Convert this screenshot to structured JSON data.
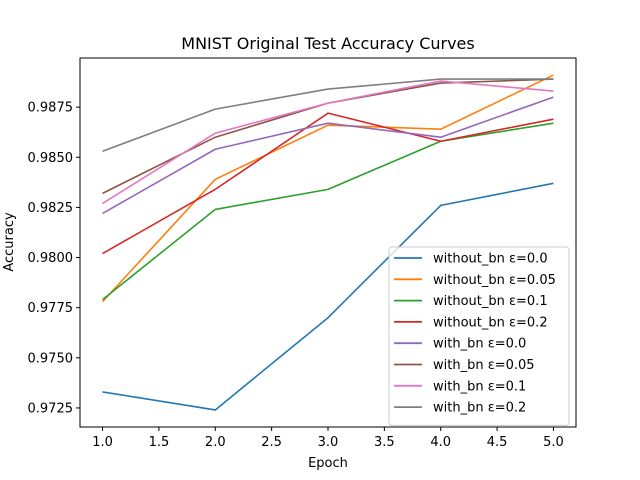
{
  "chart_data": {
    "type": "line",
    "title": "MNIST Original Test Accuracy Curves",
    "xlabel": "Epoch",
    "ylabel": "Accuracy",
    "x": [
      1,
      2,
      3,
      4,
      5
    ],
    "xlim": [
      0.8,
      5.2
    ],
    "ylim": [
      0.97155,
      0.98995
    ],
    "xticks": [
      "1.0",
      "1.5",
      "2.0",
      "2.5",
      "3.0",
      "3.5",
      "4.0",
      "4.5",
      "5.0"
    ],
    "yticks": [
      "0.9725",
      "0.9750",
      "0.9775",
      "0.9800",
      "0.9825",
      "0.9850",
      "0.9875"
    ],
    "grid": false,
    "legend_position": "lower-right",
    "series": [
      {
        "name": "without_bn ε=0.0",
        "color": "#1f77b4",
        "values": [
          0.9733,
          0.9724,
          0.977,
          0.9826,
          0.9837
        ]
      },
      {
        "name": "without_bn ε=0.05",
        "color": "#ff7f0e",
        "values": [
          0.9778,
          0.9839,
          0.9866,
          0.9864,
          0.9891
        ]
      },
      {
        "name": "without_bn ε=0.1",
        "color": "#2ca02c",
        "values": [
          0.9779,
          0.9824,
          0.9834,
          0.9858,
          0.9867
        ]
      },
      {
        "name": "without_bn ε=0.2",
        "color": "#d62728",
        "values": [
          0.9802,
          0.9834,
          0.9872,
          0.9858,
          0.9869
        ]
      },
      {
        "name": "with_bn ε=0.0",
        "color": "#9467bd",
        "values": [
          0.9822,
          0.9854,
          0.9867,
          0.986,
          0.988
        ]
      },
      {
        "name": "with_bn ε=0.05",
        "color": "#8c564b",
        "values": [
          0.9832,
          0.986,
          0.9877,
          0.9887,
          0.9889
        ]
      },
      {
        "name": "with_bn ε=0.1",
        "color": "#e377c2",
        "values": [
          0.9827,
          0.9862,
          0.9877,
          0.9888,
          0.9883
        ]
      },
      {
        "name": "with_bn ε=0.2",
        "color": "#7f7f7f",
        "values": [
          0.9853,
          0.9874,
          0.9884,
          0.9889,
          0.9889
        ]
      }
    ]
  }
}
